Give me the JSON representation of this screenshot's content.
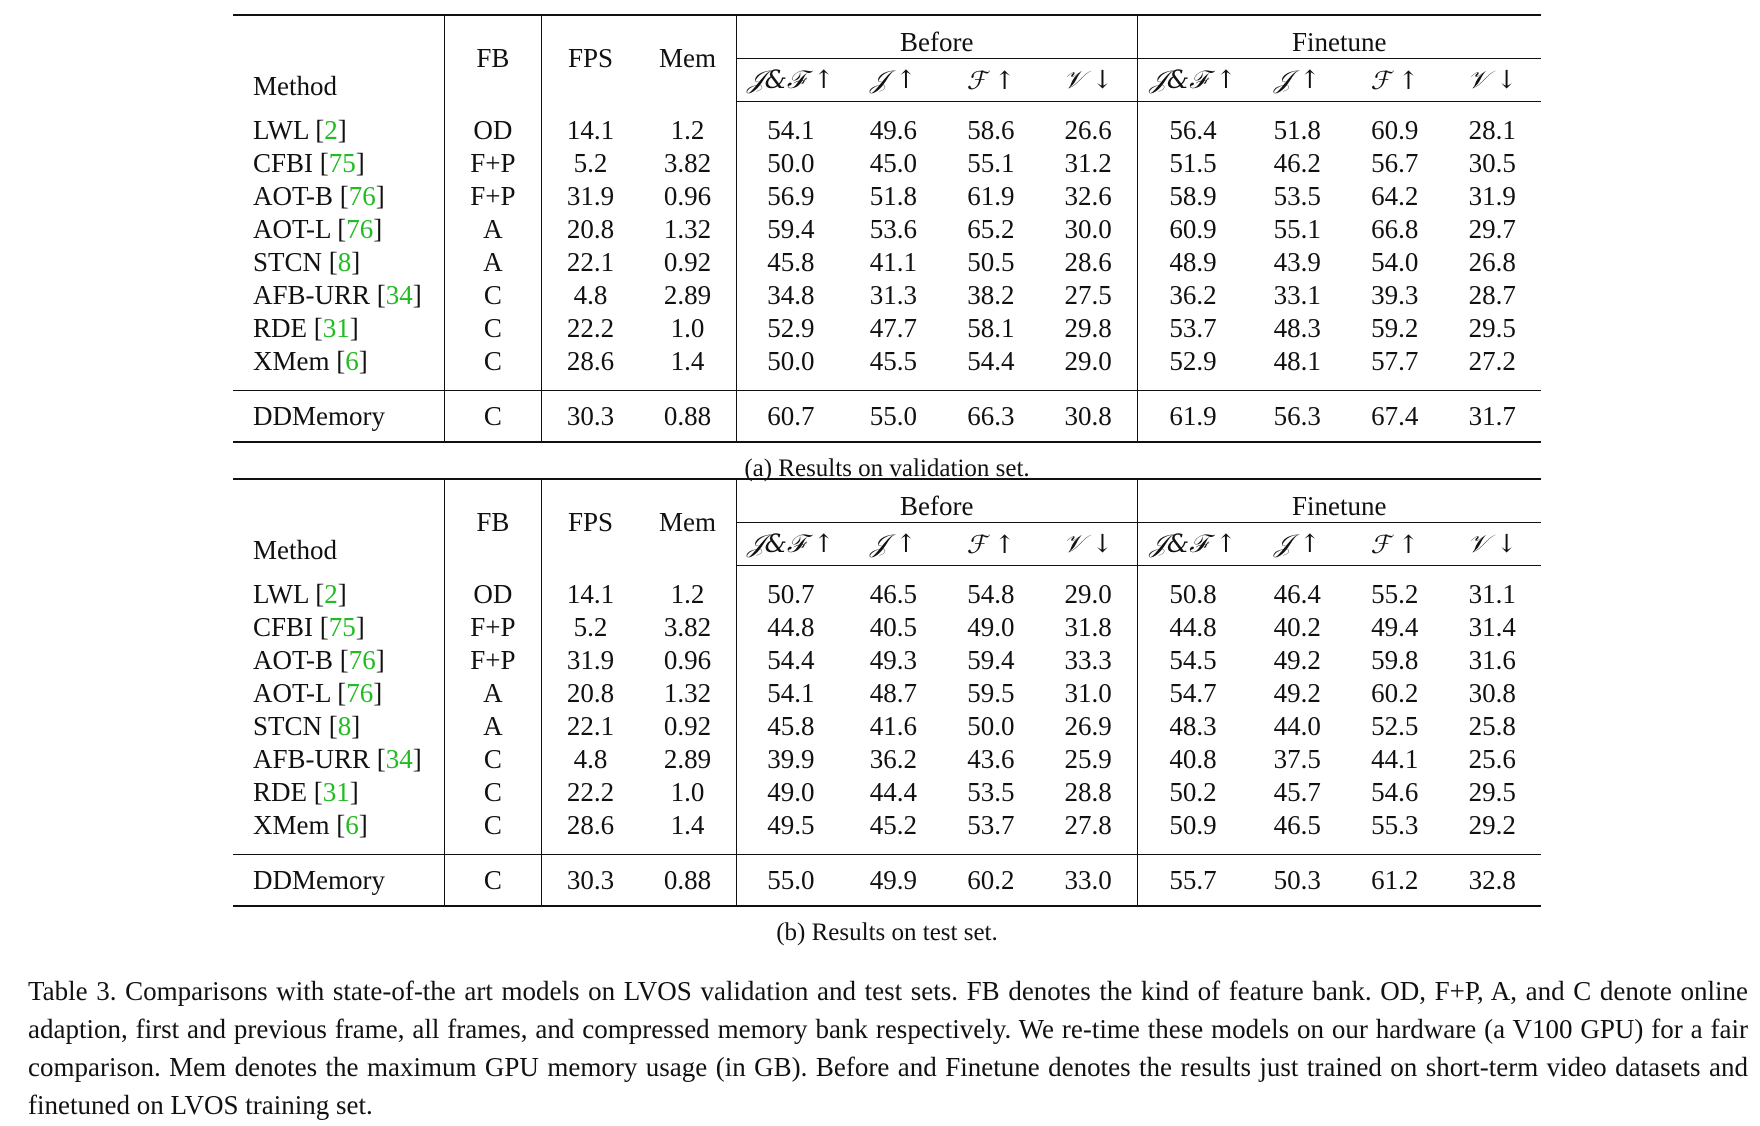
{
  "headers": {
    "method": "Method",
    "fb": "FB",
    "fps": "FPS",
    "mem": "Mem",
    "before": "Before",
    "finetune": "Finetune",
    "jf": "𝒥&ℱ ↑",
    "j": "𝒥 ↑",
    "f": "ℱ ↑",
    "v": "𝒱 ↓"
  },
  "tables": [
    {
      "caption": "(a) Results on validation set.",
      "rows": [
        {
          "method": "LWL",
          "cite": "2",
          "fb": "OD",
          "fps": "14.1",
          "mem": "1.2",
          "b_jf": "54.1",
          "b_j": "49.6",
          "b_f": "58.6",
          "b_v": "26.6",
          "f_jf": "56.4",
          "f_j": "51.8",
          "f_f": "60.9",
          "f_v": "28.1"
        },
        {
          "method": "CFBI",
          "cite": "75",
          "fb": "F+P",
          "fps": "5.2",
          "mem": "3.82",
          "b_jf": "50.0",
          "b_j": "45.0",
          "b_f": "55.1",
          "b_v": "31.2",
          "f_jf": "51.5",
          "f_j": "46.2",
          "f_f": "56.7",
          "f_v": "30.5"
        },
        {
          "method": "AOT-B",
          "cite": "76",
          "fb": "F+P",
          "fps": "31.9",
          "mem": "0.96",
          "b_jf": "56.9",
          "b_j": "51.8",
          "b_f": "61.9",
          "b_v": "32.6",
          "f_jf": "58.9",
          "f_j": "53.5",
          "f_f": "64.2",
          "f_v": "31.9"
        },
        {
          "method": "AOT-L",
          "cite": "76",
          "fb": "A",
          "fps": "20.8",
          "mem": "1.32",
          "b_jf": "59.4",
          "b_j": "53.6",
          "b_f": "65.2",
          "b_v": "30.0",
          "f_jf": "60.9",
          "f_j": "55.1",
          "f_f": "66.8",
          "f_v": "29.7"
        },
        {
          "method": "STCN",
          "cite": "8",
          "fb": "A",
          "fps": "22.1",
          "mem": "0.92",
          "b_jf": "45.8",
          "b_j": "41.1",
          "b_f": "50.5",
          "b_v": "28.6",
          "f_jf": "48.9",
          "f_j": "43.9",
          "f_f": "54.0",
          "f_v": "26.8"
        },
        {
          "method": "AFB-URR",
          "cite": "34",
          "fb": "C",
          "fps": "4.8",
          "mem": "2.89",
          "b_jf": "34.8",
          "b_j": "31.3",
          "b_f": "38.2",
          "b_v": "27.5",
          "f_jf": "36.2",
          "f_j": "33.1",
          "f_f": "39.3",
          "f_v": "28.7"
        },
        {
          "method": "RDE",
          "cite": "31",
          "fb": "C",
          "fps": "22.2",
          "mem": "1.0",
          "b_jf": "52.9",
          "b_j": "47.7",
          "b_f": "58.1",
          "b_v": "29.8",
          "f_jf": "53.7",
          "f_j": "48.3",
          "f_f": "59.2",
          "f_v": "29.5"
        },
        {
          "method": "XMem",
          "cite": "6",
          "fb": "C",
          "fps": "28.6",
          "mem": "1.4",
          "b_jf": "50.0",
          "b_j": "45.5",
          "b_f": "54.4",
          "b_v": "29.0",
          "f_jf": "52.9",
          "f_j": "48.1",
          "f_f": "57.7",
          "f_v": "27.2"
        }
      ],
      "ours": {
        "method": "DDMemory",
        "fb": "C",
        "fps": "30.3",
        "mem": "0.88",
        "b_jf": "60.7",
        "b_j": "55.0",
        "b_f": "66.3",
        "b_v": "30.8",
        "f_jf": "61.9",
        "f_j": "56.3",
        "f_f": "67.4",
        "f_v": "31.7"
      }
    },
    {
      "caption": "(b) Results on test set.",
      "rows": [
        {
          "method": "LWL",
          "cite": "2",
          "fb": "OD",
          "fps": "14.1",
          "mem": "1.2",
          "b_jf": "50.7",
          "b_j": "46.5",
          "b_f": "54.8",
          "b_v": "29.0",
          "f_jf": "50.8",
          "f_j": "46.4",
          "f_f": "55.2",
          "f_v": "31.1"
        },
        {
          "method": "CFBI",
          "cite": "75",
          "fb": "F+P",
          "fps": "5.2",
          "mem": "3.82",
          "b_jf": "44.8",
          "b_j": "40.5",
          "b_f": "49.0",
          "b_v": "31.8",
          "f_jf": "44.8",
          "f_j": "40.2",
          "f_f": "49.4",
          "f_v": "31.4"
        },
        {
          "method": "AOT-B",
          "cite": "76",
          "fb": "F+P",
          "fps": "31.9",
          "mem": "0.96",
          "b_jf": "54.4",
          "b_j": "49.3",
          "b_f": "59.4",
          "b_v": "33.3",
          "f_jf": "54.5",
          "f_j": "49.2",
          "f_f": "59.8",
          "f_v": "31.6"
        },
        {
          "method": "AOT-L",
          "cite": "76",
          "fb": "A",
          "fps": "20.8",
          "mem": "1.32",
          "b_jf": "54.1",
          "b_j": "48.7",
          "b_f": "59.5",
          "b_v": "31.0",
          "f_jf": "54.7",
          "f_j": "49.2",
          "f_f": "60.2",
          "f_v": "30.8"
        },
        {
          "method": "STCN",
          "cite": "8",
          "fb": "A",
          "fps": "22.1",
          "mem": "0.92",
          "b_jf": "45.8",
          "b_j": "41.6",
          "b_f": "50.0",
          "b_v": "26.9",
          "f_jf": "48.3",
          "f_j": "44.0",
          "f_f": "52.5",
          "f_v": "25.8"
        },
        {
          "method": "AFB-URR",
          "cite": "34",
          "fb": "C",
          "fps": "4.8",
          "mem": "2.89",
          "b_jf": "39.9",
          "b_j": "36.2",
          "b_f": "43.6",
          "b_v": "25.9",
          "f_jf": "40.8",
          "f_j": "37.5",
          "f_f": "44.1",
          "f_v": "25.6"
        },
        {
          "method": "RDE",
          "cite": "31",
          "fb": "C",
          "fps": "22.2",
          "mem": "1.0",
          "b_jf": "49.0",
          "b_j": "44.4",
          "b_f": "53.5",
          "b_v": "28.8",
          "f_jf": "50.2",
          "f_j": "45.7",
          "f_f": "54.6",
          "f_v": "29.5"
        },
        {
          "method": "XMem",
          "cite": "6",
          "fb": "C",
          "fps": "28.6",
          "mem": "1.4",
          "b_jf": "49.5",
          "b_j": "45.2",
          "b_f": "53.7",
          "b_v": "27.8",
          "f_jf": "50.9",
          "f_j": "46.5",
          "f_f": "55.3",
          "f_v": "29.2"
        }
      ],
      "ours": {
        "method": "DDMemory",
        "fb": "C",
        "fps": "30.3",
        "mem": "0.88",
        "b_jf": "55.0",
        "b_j": "49.9",
        "b_f": "60.2",
        "b_v": "33.0",
        "f_jf": "55.7",
        "f_j": "50.3",
        "f_f": "61.2",
        "f_v": "32.8"
      }
    }
  ],
  "caption": "Table 3. Comparisons with state-of-the art models on LVOS validation and test sets. FB denotes the kind of feature bank. OD, F+P, A, and C denote online adaption, first and previous frame, all frames, and compressed memory bank respectively. We re-time these models on our hardware (a V100 GPU) for a fair comparison. Mem denotes the maximum GPU memory usage (in GB). Before and Finetune denotes the results just trained on short-term video datasets and finetuned on LVOS training set."
}
